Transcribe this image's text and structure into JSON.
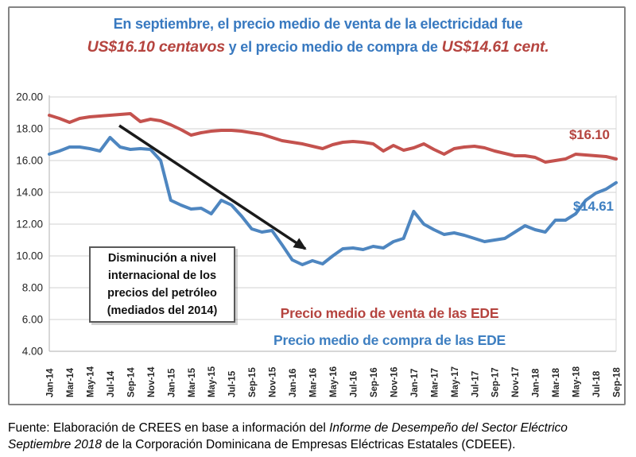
{
  "title": {
    "line1": "En septiembre, el precio medio de venta de la electricidad fue",
    "line2_red1": "US$16.10 centavos",
    "line2_blue": " y el precio medio de compra de ",
    "line2_red2": "US$14.61 cent."
  },
  "annotation": {
    "text": "Disminución a nivel\ninternacional de los\nprecios del petróleo\n(mediados del 2014)"
  },
  "legend": {
    "venta": "Precio medio de venta de las EDE",
    "compra": "Precio medio de compra de las EDE"
  },
  "end_labels": {
    "venta": "$16.10",
    "compra": "$14.61"
  },
  "footer": {
    "l1_normal": "Fuente: Elaboración de CREES en base a información del ",
    "l1_italic": "Informe de Desempeño del Sector Eléctrico",
    "l2_italic": "Septiembre 2018",
    "l2_normal": " de la Corporación Dominicana de Empresas Eléctricas Estatales (CDEEE)."
  },
  "colors": {
    "venta_line": "#C4524E",
    "compra_line": "#4E86C0",
    "title_blue": "#3879C0",
    "title_red": "#B5443F",
    "grid": "#D9D9D9",
    "axis_line": "#BFBFBF",
    "axis_text": "#262626",
    "arrow": "#1A1A1A"
  },
  "chart_data": {
    "type": "line",
    "title": "En septiembre, el precio medio de venta de la electricidad fue US$16.10 centavos y el precio medio de compra de US$14.61 cent.",
    "xlabel": "",
    "ylabel": "",
    "ylim": [
      4,
      20
    ],
    "y_ticks": [
      20,
      18,
      16,
      14,
      12,
      10,
      8,
      6,
      4
    ],
    "x_tick_step": 2,
    "grid": "horizontal",
    "legend_position": "inside-bottom",
    "annotation_text": "Disminución a nivel internacional de los precios del petróleo (mediados del 2014)",
    "categories": [
      "Jan-14",
      "Feb-14",
      "Mar-14",
      "Apr-14",
      "May-14",
      "Jun-14",
      "Jul-14",
      "Aug-14",
      "Sep-14",
      "Oct-14",
      "Nov-14",
      "Dec-14",
      "Jan-15",
      "Feb-15",
      "Mar-15",
      "Apr-15",
      "May-15",
      "Jun-15",
      "Jul-15",
      "Aug-15",
      "Sep-15",
      "Oct-15",
      "Nov-15",
      "Dec-15",
      "Jan-16",
      "Feb-16",
      "Mar-16",
      "Apr-16",
      "May-16",
      "Jun-16",
      "Jul-16",
      "Aug-16",
      "Sep-16",
      "Oct-16",
      "Nov-16",
      "Dec-16",
      "Jan-17",
      "Feb-17",
      "Mar-17",
      "Apr-17",
      "May-17",
      "Jun-17",
      "Jul-17",
      "Aug-17",
      "Sep-17",
      "Oct-17",
      "Nov-17",
      "Dec-17",
      "Jan-18",
      "Feb-18",
      "Mar-18",
      "Apr-18",
      "May-18",
      "Jun-18",
      "Jul-18",
      "Aug-18",
      "Sep-18"
    ],
    "series": [
      {
        "name": "Precio medio de venta de las EDE",
        "color": "#C4524E",
        "end_value": 16.1,
        "values": [
          18.85,
          18.65,
          18.4,
          18.65,
          18.75,
          18.8,
          18.85,
          18.9,
          18.95,
          18.45,
          18.6,
          18.5,
          18.25,
          17.95,
          17.6,
          17.75,
          17.85,
          17.9,
          17.9,
          17.85,
          17.75,
          17.65,
          17.45,
          17.25,
          17.15,
          17.05,
          16.9,
          16.75,
          17.0,
          17.15,
          17.2,
          17.15,
          17.05,
          16.6,
          16.95,
          16.65,
          16.8,
          17.05,
          16.7,
          16.4,
          16.75,
          16.85,
          16.9,
          16.8,
          16.6,
          16.45,
          16.3,
          16.3,
          16.2,
          15.9,
          16.0,
          16.1,
          16.4,
          16.35,
          16.3,
          16.25,
          16.1
        ]
      },
      {
        "name": "Precio medio de compra de las EDE",
        "color": "#4E86C0",
        "end_value": 14.61,
        "values": [
          16.4,
          16.6,
          16.85,
          16.85,
          16.75,
          16.6,
          17.45,
          16.85,
          16.7,
          16.75,
          16.7,
          16.0,
          13.5,
          13.2,
          12.95,
          13.0,
          12.65,
          13.5,
          13.2,
          12.5,
          11.7,
          11.5,
          11.6,
          10.7,
          9.75,
          9.45,
          9.7,
          9.5,
          10.0,
          10.45,
          10.5,
          10.4,
          10.6,
          10.5,
          10.9,
          11.1,
          12.8,
          12.0,
          11.65,
          11.35,
          11.45,
          11.3,
          11.1,
          10.9,
          11.0,
          11.1,
          11.5,
          11.9,
          11.65,
          11.5,
          12.25,
          12.25,
          12.65,
          13.5,
          13.95,
          14.2,
          14.61
        ]
      }
    ]
  }
}
